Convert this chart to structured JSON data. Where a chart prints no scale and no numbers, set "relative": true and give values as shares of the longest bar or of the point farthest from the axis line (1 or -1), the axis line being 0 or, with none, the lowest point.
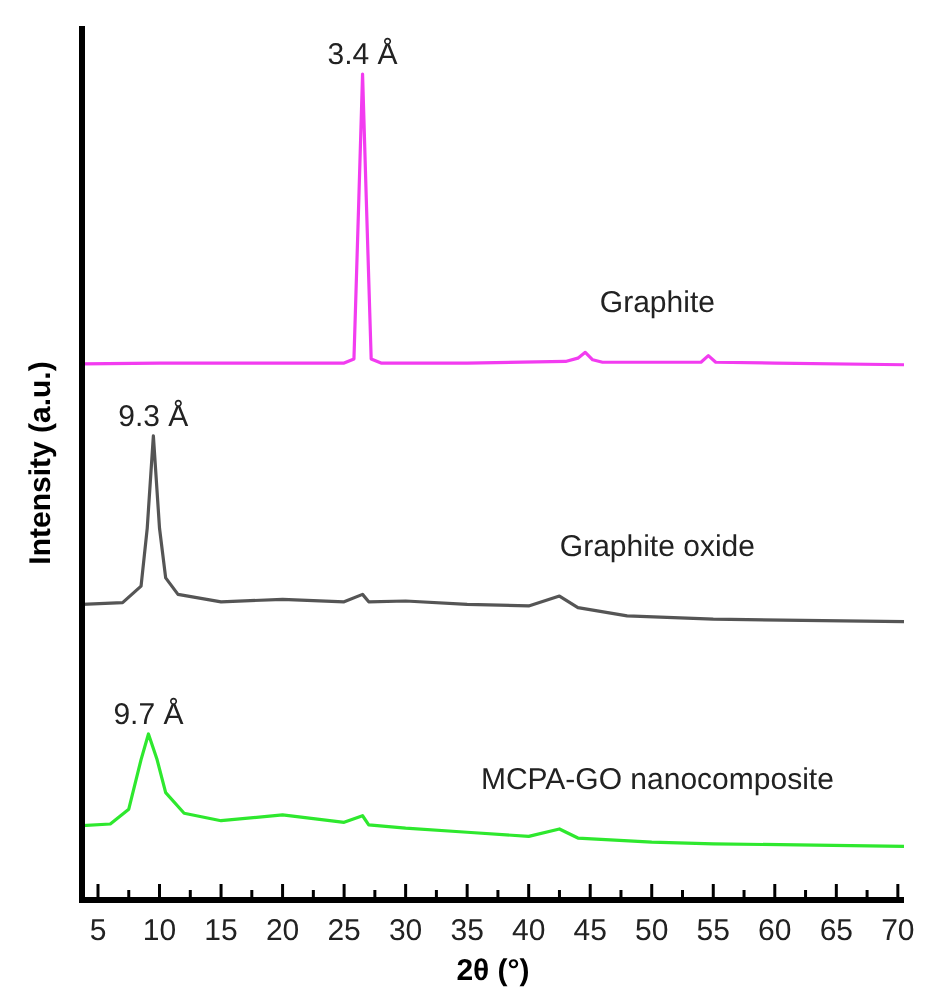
{
  "chart_data": {
    "type": "line",
    "relative": true,
    "xlabel": "2θ (°)",
    "ylabel": "Intensity (a.u.)",
    "xlim": [
      3.7,
      70.5
    ],
    "xticks": [
      5,
      {
        "value": 7.5,
        "label": null
      },
      10,
      {
        "value": 12.5,
        "label": null
      },
      15,
      {
        "value": 17.5,
        "label": null
      },
      20,
      {
        "value": 22.5,
        "label": null
      },
      25,
      {
        "value": 27.5,
        "label": null
      },
      30,
      {
        "value": 32.5,
        "label": null
      },
      35,
      {
        "value": 37.5,
        "label": null
      },
      40,
      {
        "value": 42.5,
        "label": null
      },
      45,
      {
        "value": 47.5,
        "label": null
      },
      50,
      {
        "value": 52.5,
        "label": null
      },
      55,
      {
        "value": 57.5,
        "label": null
      },
      60,
      {
        "value": 62.5,
        "label": null
      },
      65,
      {
        "value": 67.5,
        "label": null
      },
      70
    ],
    "marker": "none",
    "line_style": "solid",
    "series": [
      {
        "name": "Graphite",
        "color": "#f23cf0",
        "x": [
          3.7,
          10,
          20,
          25,
          25.8,
          26.2,
          26.5,
          26.8,
          27.2,
          28,
          35,
          43,
          44,
          44.6,
          45.2,
          46,
          54,
          54.6,
          55.2,
          60,
          70.5
        ],
        "values": [
          0.649,
          0.65,
          0.65,
          0.65,
          0.655,
          0.85,
          1,
          0.85,
          0.655,
          0.65,
          0.65,
          0.652,
          0.656,
          0.663,
          0.654,
          0.651,
          0.651,
          0.659,
          0.651,
          0.65,
          0.648
        ]
      },
      {
        "name": "Graphite oxide",
        "color": "#555555",
        "x": [
          3.7,
          7,
          8.5,
          9,
          9.5,
          10,
          10.5,
          11.5,
          15,
          20,
          25,
          26.5,
          27,
          30,
          35,
          40,
          42.5,
          44,
          48,
          55,
          70.5
        ],
        "values": [
          0.358,
          0.36,
          0.38,
          0.45,
          0.562,
          0.45,
          0.39,
          0.37,
          0.361,
          0.364,
          0.361,
          0.37,
          0.361,
          0.362,
          0.358,
          0.356,
          0.368,
          0.354,
          0.344,
          0.34,
          0.337
        ]
      },
      {
        "name": "MCPA-GO nanocomposite",
        "color": "#2ee82e",
        "x": [
          3.7,
          6,
          7.5,
          8.5,
          9.1,
          9.8,
          10.5,
          12,
          15,
          20,
          25,
          26.5,
          27,
          30,
          35,
          40,
          42.5,
          44,
          50,
          55,
          70.5
        ],
        "values": [
          0.09,
          0.092,
          0.11,
          0.17,
          0.201,
          0.17,
          0.13,
          0.105,
          0.096,
          0.103,
          0.094,
          0.102,
          0.091,
          0.087,
          0.082,
          0.077,
          0.086,
          0.075,
          0.07,
          0.068,
          0.065
        ]
      }
    ],
    "annotations": [
      {
        "text": "3.4 Å",
        "x": 26.5,
        "y": 1
      },
      {
        "text": "9.3 Å",
        "x": 9.5,
        "y": 0.562
      },
      {
        "text": "9.7 Å",
        "x": 9.1,
        "y": 0.201
      }
    ]
  }
}
